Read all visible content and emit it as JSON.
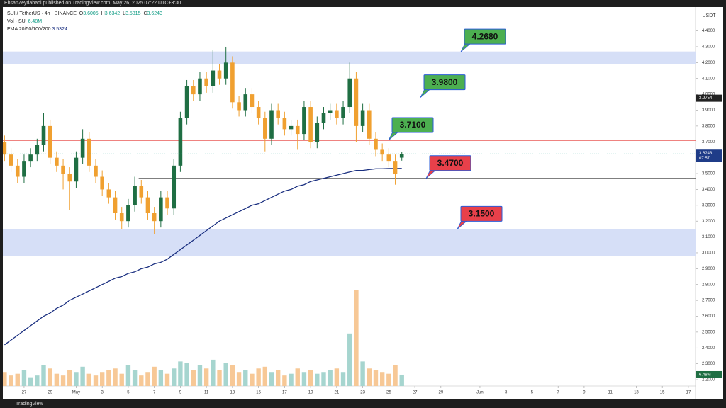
{
  "chart_data": {
    "type": "candlestick",
    "publisher": "EhsanZeydabadi published on TradingView.com, May 26, 2025 07:22 UTC+3:30",
    "title": "SUI / TetherUS · 4h · BINANCE",
    "ohlc_letters": [
      "O",
      "H",
      "L",
      "C"
    ],
    "currency": "USDT",
    "footer": "TradingView",
    "countdown": "07:57",
    "up_color": "#1f6e43",
    "down_color": "#f0a030",
    "x": [
      -1.5,
      -1,
      -0.5,
      0,
      0.5,
      1,
      1.5,
      2,
      2.5,
      3,
      3.5,
      4,
      4.5,
      5,
      5.5,
      6,
      6.5,
      7,
      7.5,
      8,
      8.5,
      9,
      9.5,
      10,
      10.5,
      11,
      11.5,
      12,
      12.5,
      13,
      13.5,
      14,
      14.5,
      15,
      15.5,
      16,
      16.5,
      17,
      17.5,
      18,
      18.5,
      19,
      19.5,
      20,
      20.5,
      21,
      21.5,
      22,
      22.5,
      23,
      23.5,
      24,
      24.5,
      25,
      25.5,
      26,
      26.5,
      27,
      27.5,
      28,
      28.5,
      29
    ],
    "open": [
      3.7,
      3.62,
      3.55,
      3.48,
      3.58,
      3.62,
      3.68,
      3.8,
      3.6,
      3.55,
      3.5,
      3.45,
      3.6,
      3.72,
      3.55,
      3.48,
      3.4,
      3.35,
      3.25,
      3.2,
      3.3,
      3.42,
      3.35,
      3.25,
      3.2,
      3.35,
      3.28,
      3.55,
      3.85,
      4.05,
      4.0,
      4.1,
      4.05,
      4.15,
      4.1,
      4.2,
      3.95,
      3.9,
      4.0,
      3.92,
      3.85,
      3.72,
      3.9,
      3.85,
      3.78,
      3.8,
      3.75,
      3.92,
      3.7,
      3.82,
      3.88,
      3.9,
      3.85,
      3.92,
      4.1,
      3.8,
      3.9,
      3.72,
      3.65,
      3.62,
      3.58,
      3.6005
    ],
    "high": [
      3.74,
      3.66,
      3.59,
      3.62,
      3.66,
      3.72,
      3.88,
      3.84,
      3.64,
      3.59,
      3.54,
      3.64,
      3.78,
      3.76,
      3.59,
      3.52,
      3.44,
      3.39,
      3.29,
      3.34,
      3.48,
      3.46,
      3.39,
      3.29,
      3.39,
      3.39,
      3.59,
      3.89,
      4.09,
      4.09,
      4.14,
      4.14,
      4.28,
      4.19,
      4.3,
      4.24,
      3.99,
      4.04,
      4.04,
      3.96,
      3.89,
      3.94,
      3.94,
      3.89,
      3.84,
      3.84,
      3.96,
      3.96,
      3.86,
      3.92,
      3.94,
      3.94,
      3.96,
      4.2,
      4.14,
      3.94,
      3.94,
      3.76,
      3.69,
      3.66,
      3.62,
      3.6342
    ],
    "low": [
      3.58,
      3.51,
      3.44,
      3.44,
      3.54,
      3.58,
      3.64,
      3.56,
      3.51,
      3.4,
      3.27,
      3.41,
      3.56,
      3.51,
      3.44,
      3.36,
      3.31,
      3.21,
      3.15,
      3.16,
      3.26,
      3.31,
      3.21,
      3.12,
      3.16,
      3.24,
      3.24,
      3.51,
      3.81,
      3.96,
      3.96,
      4.01,
      4.01,
      4.06,
      4.06,
      3.91,
      3.86,
      3.86,
      3.88,
      3.81,
      3.64,
      3.68,
      3.81,
      3.74,
      3.74,
      3.65,
      3.71,
      3.66,
      3.66,
      3.78,
      3.84,
      3.81,
      3.81,
      3.88,
      3.7,
      3.76,
      3.68,
      3.61,
      3.58,
      3.54,
      3.43,
      3.5815
    ],
    "close": [
      3.62,
      3.55,
      3.48,
      3.58,
      3.62,
      3.68,
      3.8,
      3.6,
      3.55,
      3.5,
      3.45,
      3.6,
      3.72,
      3.55,
      3.48,
      3.4,
      3.35,
      3.25,
      3.2,
      3.3,
      3.42,
      3.35,
      3.25,
      3.2,
      3.35,
      3.28,
      3.55,
      3.85,
      4.05,
      4.0,
      4.1,
      4.05,
      4.15,
      4.1,
      4.2,
      3.95,
      3.9,
      4.0,
      3.92,
      3.85,
      3.72,
      3.9,
      3.85,
      3.78,
      3.8,
      3.75,
      3.92,
      3.7,
      3.82,
      3.88,
      3.9,
      3.85,
      3.92,
      4.1,
      3.8,
      3.9,
      3.72,
      3.65,
      3.62,
      3.58,
      3.5,
      3.6243
    ],
    "volume": {
      "name": "Vol · SUI",
      "up_color": "#a6d5cf",
      "down_color": "#f7c896",
      "last_label": "6.48M",
      "values": [
        8,
        6,
        7,
        9,
        5,
        6,
        12,
        10,
        7,
        6,
        9,
        8,
        11,
        7,
        6,
        8,
        9,
        10,
        7,
        12,
        9,
        6,
        8,
        11,
        9,
        7,
        10,
        14,
        13,
        9,
        12,
        10,
        15,
        9,
        13,
        12,
        8,
        9,
        7,
        10,
        11,
        8,
        9,
        6,
        7,
        10,
        8,
        9,
        7,
        8,
        9,
        10,
        8,
        30,
        55,
        14,
        10,
        9,
        8,
        7,
        12,
        6.48
      ]
    },
    "ema": {
      "name": "EMA 20/50/100/200",
      "color": "#1a2f80",
      "values": [
        2.42,
        2.45,
        2.48,
        2.51,
        2.54,
        2.57,
        2.6,
        2.62,
        2.65,
        2.67,
        2.7,
        2.72,
        2.74,
        2.76,
        2.78,
        2.8,
        2.82,
        2.84,
        2.85,
        2.87,
        2.88,
        2.9,
        2.91,
        2.93,
        2.94,
        2.96,
        2.99,
        3.02,
        3.05,
        3.08,
        3.11,
        3.14,
        3.17,
        3.2,
        3.22,
        3.24,
        3.26,
        3.28,
        3.3,
        3.31,
        3.33,
        3.35,
        3.37,
        3.39,
        3.4,
        3.42,
        3.43,
        3.45,
        3.46,
        3.47,
        3.48,
        3.49,
        3.5,
        3.51,
        3.52,
        3.52,
        3.525,
        3.53,
        3.53,
        3.532,
        3.532,
        3.5324
      ]
    },
    "zones": [
      {
        "from": 4.19,
        "to": 4.27,
        "color": "#d6dff7"
      },
      {
        "from": 2.98,
        "to": 3.15,
        "color": "#d6dff7"
      }
    ],
    "levels": [
      {
        "value": 3.71,
        "color": "#e53935",
        "from_x": -1.63
      },
      {
        "value": {
          "value": 3.9754,
          "label": "3.9754"
        },
        "color": "#9e9e9e",
        "from_x": 17.1
      },
      {
        "value": 3.47,
        "color": "#333333",
        "from_x": 8.8
      }
    ],
    "callouts": [
      {
        "value": {
          "value": 4.268,
          "label": "4.2680"
        },
        "color": "#4caf50"
      },
      {
        "value": {
          "value": 3.98,
          "label": "3.9800"
        },
        "color": "#4caf50"
      },
      {
        "value": {
          "value": 3.71,
          "label": "3.7100"
        },
        "color": "#4caf50"
      },
      {
        "value": {
          "value": 3.47,
          "label": "3.4700"
        },
        "color": "#e8404a"
      },
      {
        "value": {
          "value": 3.15,
          "label": "3.1500"
        },
        "color": "#e8404a"
      }
    ],
    "xlim": [
      -1.63,
      51.55
    ],
    "xticks": [
      {
        "value": 0,
        "label": "27"
      },
      {
        "value": 2,
        "label": "29"
      },
      {
        "value": 4,
        "label": "May"
      },
      {
        "value": 6,
        "label": "3"
      },
      {
        "value": 8,
        "label": "5"
      },
      {
        "value": 10,
        "label": "7"
      },
      {
        "value": 12,
        "label": "9"
      },
      {
        "value": 14,
        "label": "11"
      },
      {
        "value": 16,
        "label": "13"
      },
      {
        "value": 18,
        "label": "15"
      },
      {
        "value": 20,
        "label": "17"
      },
      {
        "value": 22,
        "label": "19"
      },
      {
        "value": 24,
        "label": "21"
      },
      {
        "value": 26,
        "label": "23"
      },
      {
        "value": 28,
        "label": "25"
      },
      {
        "value": 30,
        "label": "27"
      },
      {
        "value": 32,
        "label": "29"
      },
      {
        "value": 35,
        "label": "Jun"
      },
      {
        "value": 37,
        "label": "3"
      },
      {
        "value": 39,
        "label": "5"
      },
      {
        "value": 41,
        "label": "7"
      },
      {
        "value": 43,
        "label": "9"
      },
      {
        "value": 45,
        "label": "11"
      },
      {
        "value": 47,
        "label": "13"
      },
      {
        "value": 49,
        "label": "15"
      },
      {
        "value": 51,
        "label": "17"
      }
    ],
    "ylim": [
      2.16,
      4.55
    ],
    "yticks": [
      {
        "value": 2.2,
        "label": "2.2000"
      },
      {
        "value": 2.3,
        "label": "2.3000"
      },
      {
        "value": 2.4,
        "label": "2.4000"
      },
      {
        "value": 2.5,
        "label": "2.5000"
      },
      {
        "value": 2.6,
        "label": "2.6000"
      },
      {
        "value": 2.7,
        "label": "2.7000"
      },
      {
        "value": 2.8,
        "label": "2.8000"
      },
      {
        "value": 2.9,
        "label": "2.9000"
      },
      {
        "value": 3.0,
        "label": "3.0000"
      },
      {
        "value": 3.1,
        "label": "3.1000"
      },
      {
        "value": 3.2,
        "label": "3.2000"
      },
      {
        "value": 3.3,
        "label": "3.3000"
      },
      {
        "value": 3.4,
        "label": "3.4000"
      },
      {
        "value": 3.5,
        "label": "3.5000"
      },
      {
        "value": 3.6,
        "label": "3.6000"
      },
      {
        "value": 3.7,
        "label": "3.7000"
      },
      {
        "value": 3.8,
        "label": "3.8000"
      },
      {
        "value": 3.9,
        "label": "3.9000"
      },
      {
        "value": 4.0,
        "label": "4.0000"
      },
      {
        "value": 4.1,
        "label": "4.1000"
      },
      {
        "value": 4.2,
        "label": "4.2000"
      },
      {
        "value": 4.3,
        "label": "4.3000"
      },
      {
        "value": 4.4,
        "label": "4.4000"
      }
    ]
  }
}
